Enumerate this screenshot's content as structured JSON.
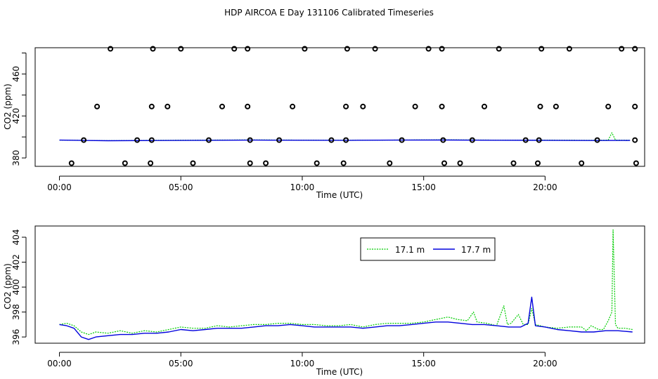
{
  "title": "HDP AIRCOA E  Day 131106  Calibrated Timeseries",
  "chart_data": [
    {
      "type": "scatter",
      "xlabel": "Time (UTC)",
      "ylabel": "CO2 (ppm)",
      "xticks": [
        "00:00",
        "05:00",
        "10:00",
        "15:00",
        "20:00"
      ],
      "yticks": [
        "380",
        "420",
        "460"
      ],
      "xlim": [
        -1.0,
        24.1
      ],
      "ylim": [
        372,
        485
      ],
      "calibration_points": {
        "y375": [
          0.5,
          2.7,
          3.75,
          5.5,
          7.85,
          8.5,
          10.6,
          11.7,
          13.6,
          15.85,
          16.5,
          18.7,
          19.7,
          21.5,
          23.75
        ],
        "y397": [
          1.0,
          3.2,
          3.8,
          6.15,
          7.85,
          9.05,
          11.2,
          11.8,
          14.1,
          15.8,
          17.0,
          19.2,
          19.75,
          22.15,
          23.7
        ],
        "y429": [
          1.55,
          3.8,
          4.45,
          6.7,
          7.75,
          9.6,
          11.8,
          12.5,
          14.65,
          15.75,
          17.5,
          19.8,
          20.45,
          22.6,
          23.7
        ],
        "y484": [
          2.1,
          3.85,
          5.0,
          7.2,
          7.75,
          10.1,
          11.85,
          13.0,
          15.2,
          15.75,
          18.1,
          19.85,
          21.0,
          23.15,
          23.7
        ]
      },
      "series": [
        {
          "name": "17.1 m",
          "color": "#00cc00",
          "x": [
            0,
            2,
            4,
            6,
            8,
            10,
            12,
            14,
            16,
            18,
            20,
            22,
            22.6,
            22.75,
            22.9,
            23.5
          ],
          "y": [
            397,
            396.5,
            396.8,
            397,
            397.2,
            397,
            396.9,
            397.1,
            397.3,
            397,
            397,
            396.8,
            397,
            404,
            397,
            396.9
          ]
        },
        {
          "name": "17.7 m",
          "color": "#0000dd",
          "x": [
            0,
            2,
            4,
            6,
            8,
            10,
            12,
            14,
            16,
            18,
            20,
            22,
            23.5
          ],
          "y": [
            397,
            396.4,
            396.6,
            396.8,
            397,
            396.9,
            396.8,
            397,
            397.1,
            396.9,
            396.8,
            396.6,
            396.7
          ]
        }
      ]
    },
    {
      "type": "line",
      "xlabel": "Time (UTC)",
      "ylabel": "CO2 (ppm)",
      "xticks": [
        "00:00",
        "05:00",
        "10:00",
        "15:00",
        "20:00"
      ],
      "yticks": [
        "396",
        "398",
        "400",
        "402",
        "404"
      ],
      "xlim": [
        -1.0,
        24.1
      ],
      "ylim": [
        395.5,
        404.9
      ],
      "legend": "top-center",
      "series": [
        {
          "name": "17.1 m",
          "color": "#00cc00",
          "x": [
            0,
            0.3,
            0.6,
            0.9,
            1.2,
            1.5,
            2.0,
            2.5,
            3.0,
            3.5,
            4.0,
            4.5,
            5.0,
            5.5,
            6.0,
            6.5,
            7.0,
            7.5,
            8.0,
            8.5,
            9.0,
            9.5,
            10.0,
            10.5,
            11.0,
            11.5,
            12.0,
            12.5,
            13.0,
            13.5,
            14.0,
            14.5,
            15.0,
            15.5,
            16.0,
            16.4,
            16.8,
            17.05,
            17.2,
            17.6,
            18.0,
            18.3,
            18.45,
            18.6,
            18.9,
            19.1,
            19.3,
            19.45,
            19.6,
            20.0,
            20.5,
            21.0,
            21.5,
            21.7,
            21.9,
            22.2,
            22.4,
            22.6,
            22.75,
            22.8,
            22.9,
            23.0,
            23.3,
            23.6
          ],
          "y": [
            397.0,
            397.1,
            396.9,
            396.4,
            396.2,
            396.4,
            396.3,
            396.5,
            396.3,
            396.5,
            396.4,
            396.6,
            396.8,
            396.7,
            396.7,
            396.9,
            396.8,
            396.9,
            397.0,
            397.0,
            397.1,
            397.1,
            397.0,
            397.0,
            396.9,
            396.9,
            397.0,
            396.8,
            397.0,
            397.1,
            397.1,
            397.1,
            397.2,
            397.4,
            397.6,
            397.4,
            397.3,
            398.0,
            397.2,
            397.1,
            396.9,
            398.5,
            397.0,
            397.1,
            397.8,
            397.0,
            397.0,
            398.3,
            397.0,
            396.8,
            396.7,
            396.8,
            396.8,
            396.5,
            396.9,
            396.6,
            396.6,
            397.3,
            398.0,
            404.6,
            397.0,
            396.7,
            396.7,
            396.6
          ]
        },
        {
          "name": "17.7 m",
          "color": "#0000dd",
          "x": [
            0,
            0.3,
            0.6,
            0.9,
            1.2,
            1.5,
            2.0,
            2.5,
            3.0,
            3.5,
            4.0,
            4.5,
            5.0,
            5.5,
            6.0,
            6.5,
            7.0,
            7.5,
            8.0,
            8.5,
            9.0,
            9.5,
            10.0,
            10.5,
            11.0,
            11.5,
            12.0,
            12.5,
            13.0,
            13.5,
            14.0,
            14.5,
            15.0,
            15.5,
            16.0,
            16.5,
            17.0,
            17.5,
            18.0,
            18.5,
            19.0,
            19.3,
            19.45,
            19.6,
            20.0,
            20.5,
            21.0,
            21.5,
            22.0,
            22.5,
            23.0,
            23.6
          ],
          "y": [
            397.0,
            396.9,
            396.7,
            396.0,
            395.8,
            396.0,
            396.1,
            396.2,
            396.2,
            396.3,
            396.3,
            396.4,
            396.6,
            396.5,
            396.6,
            396.7,
            396.7,
            396.7,
            396.8,
            396.9,
            396.9,
            397.0,
            396.9,
            396.8,
            396.8,
            396.8,
            396.8,
            396.7,
            396.8,
            396.9,
            396.9,
            397.0,
            397.1,
            397.2,
            397.2,
            397.1,
            397.0,
            397.0,
            396.9,
            396.8,
            396.8,
            397.1,
            399.2,
            396.9,
            396.8,
            396.6,
            396.5,
            396.4,
            396.4,
            396.5,
            396.5,
            396.4
          ]
        }
      ]
    }
  ]
}
